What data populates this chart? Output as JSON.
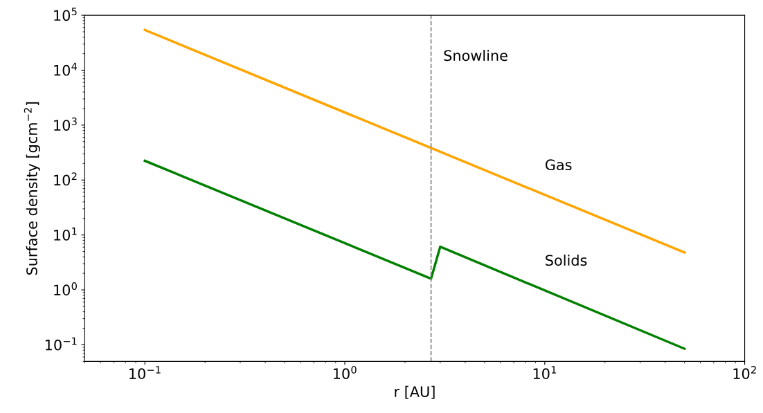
{
  "chart_data": {
    "type": "line",
    "xlabel": "r [AU]",
    "ylabel": "Surface density [gcm$^{−2}$]",
    "log": "xy",
    "grid": false,
    "legend": false,
    "marker": "none",
    "line_style": "solid",
    "xlim": [
      0.05,
      100
    ],
    "ylim": [
      0.05,
      100000
    ],
    "xticks": [
      {
        "value": 0.1,
        "label": "10$^{−1}$"
      },
      {
        "value": 1,
        "label": "10$^{0}$"
      },
      {
        "value": 10,
        "label": "10$^{1}$"
      },
      {
        "value": 100,
        "label": "10$^{2}$"
      }
    ],
    "yticks": [
      {
        "value": 0.1,
        "label": "10$^{−1}$"
      },
      {
        "value": 1,
        "label": "10$^{0}$"
      },
      {
        "value": 10,
        "label": "10$^{1}$"
      },
      {
        "value": 100,
        "label": "10$^{2}$"
      },
      {
        "value": 1000,
        "label": "10$^{3}$"
      },
      {
        "value": 10000,
        "label": "10$^{4}$"
      },
      {
        "value": 100000,
        "label": "10$^{5}$"
      }
    ],
    "series": [
      {
        "name": "Gas",
        "color": "#ffa500",
        "x": [
          0.1,
          2.7,
          50
        ],
        "values": [
          54000,
          383,
          4.8
        ]
      },
      {
        "name": "Solids",
        "color": "#008000",
        "x": [
          0.1,
          2.7,
          3.0,
          50
        ],
        "values": [
          224,
          1.6,
          6.1,
          0.085
        ]
      }
    ],
    "ref_lines": [
      {
        "axis": "x",
        "value": 2.7,
        "label": "Snowline",
        "color": "#808080",
        "line_style": "dashed"
      }
    ]
  }
}
